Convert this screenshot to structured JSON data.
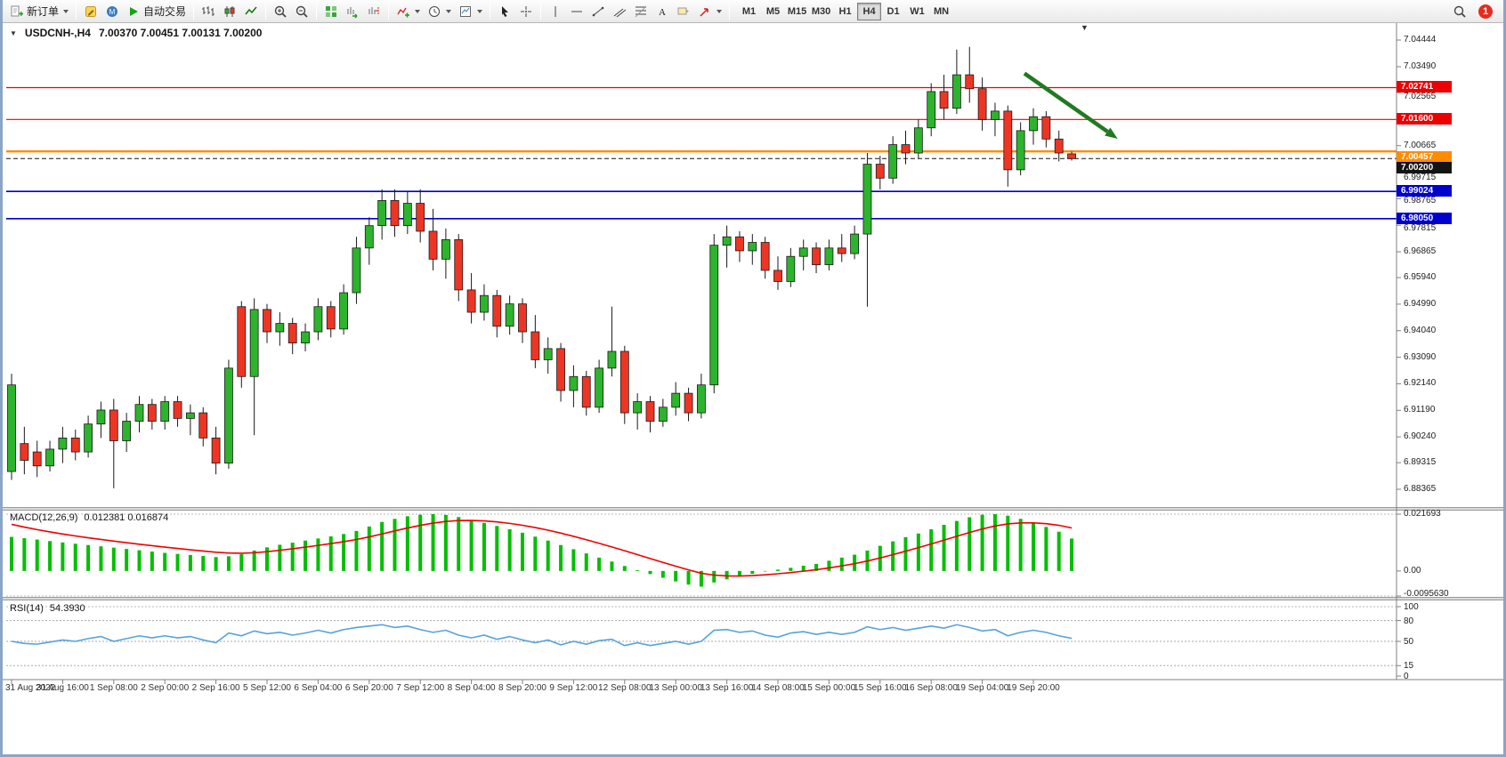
{
  "window": {
    "toolbar": {
      "new_order": "新订单",
      "autotrading": "自动交易",
      "timeframes": [
        "M1",
        "M5",
        "M15",
        "M30",
        "H1",
        "H4",
        "D1",
        "W1",
        "MN"
      ],
      "active_timeframe": "H4",
      "notification_count": "1"
    }
  },
  "chart": {
    "symbol_title": "USDCNH-,H4",
    "ohlc_text": "7.00370 7.00451 7.00131 7.00200"
  },
  "indicators": {
    "macd": {
      "name": "MACD(12,26,9)",
      "values": "0.012381 0.016874",
      "axis": [
        "0.021693",
        "0.00",
        "-0.0095630"
      ]
    },
    "rsi": {
      "name": "RSI(14)",
      "value": "54.3930",
      "axis": [
        "100",
        "80",
        "50",
        "15",
        "0"
      ],
      "levels": [
        80,
        50,
        15
      ]
    }
  },
  "chart_data": {
    "type": "candlestick",
    "symbol": "USDCNH-",
    "timeframe": "H4",
    "ylim": [
      6.88365,
      7.04444
    ],
    "price_ticks": [
      "7.04444",
      "7.03490",
      "7.02565",
      "7.00665",
      "6.99715",
      "6.98765",
      "6.97815",
      "6.96865",
      "6.95940",
      "6.94990",
      "6.94040",
      "6.93090",
      "6.92140",
      "6.91190",
      "6.90240",
      "6.89315",
      "6.88365"
    ],
    "time_labels": [
      "31 Aug 2022",
      "31 Aug 16:00",
      "1 Sep 08:00",
      "2 Sep 00:00",
      "2 Sep 16:00",
      "5 Sep 12:00",
      "6 Sep 04:00",
      "6 Sep 20:00",
      "7 Sep 12:00",
      "8 Sep 04:00",
      "8 Sep 20:00",
      "9 Sep 12:00",
      "12 Sep 08:00",
      "13 Sep 00:00",
      "13 Sep 16:00",
      "14 Sep 08:00",
      "15 Sep 00:00",
      "15 Sep 16:00",
      "16 Sep 08:00",
      "19 Sep 04:00",
      "19 Sep 20:00"
    ],
    "hlines": [
      {
        "value": 7.02741,
        "label": "7.02741",
        "color": "#ee0000",
        "width": 1.2,
        "dash": false
      },
      {
        "value": 7.016,
        "label": "7.01600",
        "color": "#ee0000",
        "width": 1.2,
        "dash": false
      },
      {
        "value": 7.00457,
        "label": "7.00457",
        "color": "#ff8c00",
        "width": 2.4,
        "dash": false
      },
      {
        "value": 7.002,
        "label": "7.00200",
        "color": "#141414",
        "width": 1.0,
        "dash": true
      },
      {
        "value": 6.99024,
        "label": "6.99024",
        "color": "#0000cc",
        "width": 1.6,
        "dash": false
      },
      {
        "value": 6.9805,
        "label": "6.98050",
        "color": "#0000cc",
        "width": 1.6,
        "dash": false
      }
    ],
    "colors": {
      "bull": "#2cb42c",
      "bear": "#ee3524",
      "wick": "#1a1a1a",
      "macd_hist": "#00bf00",
      "macd_signal": "#f00000",
      "rsi_line": "#55a3da",
      "arrow": "#217a21"
    },
    "candles": [
      [
        6.89,
        6.925,
        6.887,
        6.921
      ],
      [
        6.9,
        6.906,
        6.889,
        6.894
      ],
      [
        6.897,
        6.901,
        6.888,
        6.892
      ],
      [
        6.892,
        6.901,
        6.89,
        6.898
      ],
      [
        6.898,
        6.906,
        6.893,
        6.902
      ],
      [
        6.902,
        6.905,
        6.894,
        6.897
      ],
      [
        6.897,
        6.91,
        6.895,
        6.907
      ],
      [
        6.907,
        6.915,
        6.902,
        6.912
      ],
      [
        6.912,
        6.916,
        6.884,
        6.901
      ],
      [
        6.901,
        6.911,
        6.897,
        6.908
      ],
      [
        6.908,
        6.917,
        6.904,
        6.914
      ],
      [
        6.914,
        6.916,
        6.905,
        6.908
      ],
      [
        6.908,
        6.917,
        6.905,
        6.915
      ],
      [
        6.915,
        6.917,
        6.906,
        6.909
      ],
      [
        6.909,
        6.914,
        6.903,
        6.911
      ],
      [
        6.911,
        6.913,
        6.899,
        6.902
      ],
      [
        6.902,
        6.906,
        6.889,
        6.893
      ],
      [
        6.893,
        6.93,
        6.891,
        6.927
      ],
      [
        6.949,
        6.951,
        6.92,
        6.924
      ],
      [
        6.924,
        6.952,
        6.903,
        6.948
      ],
      [
        6.948,
        6.95,
        6.936,
        6.94
      ],
      [
        6.94,
        6.947,
        6.935,
        6.943
      ],
      [
        6.943,
        6.945,
        6.932,
        6.936
      ],
      [
        6.936,
        6.943,
        6.933,
        6.94
      ],
      [
        6.94,
        6.952,
        6.937,
        6.949
      ],
      [
        6.949,
        6.951,
        6.938,
        6.941
      ],
      [
        6.941,
        6.957,
        6.939,
        6.954
      ],
      [
        6.954,
        6.974,
        6.95,
        6.97
      ],
      [
        6.97,
        6.981,
        6.964,
        6.978
      ],
      [
        6.978,
        6.991,
        6.973,
        6.987
      ],
      [
        6.987,
        6.991,
        6.974,
        6.978
      ],
      [
        6.978,
        6.99,
        6.975,
        6.986
      ],
      [
        6.986,
        6.991,
        6.972,
        6.976
      ],
      [
        6.976,
        6.984,
        6.962,
        6.966
      ],
      [
        6.966,
        6.977,
        6.959,
        6.973
      ],
      [
        6.973,
        6.975,
        6.951,
        6.955
      ],
      [
        6.955,
        6.961,
        6.943,
        6.947
      ],
      [
        6.947,
        6.957,
        6.944,
        6.953
      ],
      [
        6.953,
        6.955,
        6.938,
        6.942
      ],
      [
        6.942,
        6.953,
        6.939,
        6.95
      ],
      [
        6.95,
        6.952,
        6.936,
        6.94
      ],
      [
        6.94,
        6.946,
        6.927,
        6.93
      ],
      [
        6.93,
        6.938,
        6.925,
        6.934
      ],
      [
        6.934,
        6.936,
        6.915,
        6.919
      ],
      [
        6.919,
        6.928,
        6.913,
        6.924
      ],
      [
        6.924,
        6.926,
        6.91,
        6.913
      ],
      [
        6.913,
        6.93,
        6.911,
        6.927
      ],
      [
        6.927,
        6.949,
        6.924,
        6.933
      ],
      [
        6.933,
        6.935,
        6.907,
        6.911
      ],
      [
        6.911,
        6.918,
        6.905,
        6.915
      ],
      [
        6.915,
        6.917,
        6.904,
        6.908
      ],
      [
        6.908,
        6.916,
        6.906,
        6.913
      ],
      [
        6.913,
        6.922,
        6.91,
        6.918
      ],
      [
        6.918,
        6.92,
        6.908,
        6.911
      ],
      [
        6.911,
        6.925,
        6.909,
        6.921
      ],
      [
        6.921,
        6.975,
        6.918,
        6.971
      ],
      [
        6.971,
        6.978,
        6.963,
        6.974
      ],
      [
        6.974,
        6.976,
        6.965,
        6.969
      ],
      [
        6.969,
        6.975,
        6.964,
        6.972
      ],
      [
        6.972,
        6.974,
        6.959,
        6.962
      ],
      [
        6.962,
        6.967,
        6.955,
        6.958
      ],
      [
        6.958,
        6.97,
        6.956,
        6.967
      ],
      [
        6.967,
        6.973,
        6.962,
        6.97
      ],
      [
        6.97,
        6.972,
        6.961,
        6.964
      ],
      [
        6.964,
        6.973,
        6.962,
        6.97
      ],
      [
        6.97,
        6.975,
        6.965,
        6.968
      ],
      [
        6.968,
        6.978,
        6.966,
        6.975
      ],
      [
        6.975,
        7.004,
        6.949,
        7.0
      ],
      [
        7.0,
        7.003,
        6.991,
        6.995
      ],
      [
        6.995,
        7.01,
        6.993,
        7.007
      ],
      [
        7.007,
        7.012,
        7.0,
        7.004
      ],
      [
        7.004,
        7.016,
        7.002,
        7.013
      ],
      [
        7.013,
        7.029,
        7.01,
        7.026
      ],
      [
        7.026,
        7.032,
        7.016,
        7.02
      ],
      [
        7.02,
        7.041,
        7.018,
        7.032
      ],
      [
        7.032,
        7.042,
        7.022,
        7.027
      ],
      [
        7.027,
        7.031,
        7.012,
        7.016
      ],
      [
        7.016,
        7.022,
        7.01,
        7.019
      ],
      [
        7.019,
        7.021,
        6.992,
        6.998
      ],
      [
        6.998,
        7.015,
        6.996,
        7.012
      ],
      [
        7.012,
        7.02,
        7.007,
        7.017
      ],
      [
        7.017,
        7.019,
        7.006,
        7.009
      ],
      [
        7.009,
        7.012,
        7.001,
        7.004
      ],
      [
        7.0037,
        7.00451,
        7.00131,
        7.002
      ]
    ],
    "macd": {
      "range": [
        -0.009563,
        0.021693
      ],
      "histogram": [
        0.013,
        0.0125,
        0.012,
        0.0114,
        0.0109,
        0.0104,
        0.0099,
        0.0094,
        0.0089,
        0.0084,
        0.0079,
        0.0074,
        0.0069,
        0.0065,
        0.0061,
        0.0057,
        0.0053,
        0.0056,
        0.0064,
        0.0078,
        0.009,
        0.01,
        0.0108,
        0.0116,
        0.0124,
        0.0132,
        0.0141,
        0.0153,
        0.017,
        0.0187,
        0.0199,
        0.0209,
        0.0215,
        0.0217,
        0.0214,
        0.0206,
        0.0195,
        0.0184,
        0.0172,
        0.0159,
        0.0146,
        0.0131,
        0.0116,
        0.0099,
        0.0083,
        0.0067,
        0.0051,
        0.0036,
        0.0019,
        0.0003,
        -0.0012,
        -0.0026,
        -0.004,
        -0.0052,
        -0.006,
        -0.0044,
        -0.0032,
        -0.0021,
        -0.0011,
        -0.0002,
        0.0005,
        0.0012,
        0.002,
        0.0027,
        0.0039,
        0.0051,
        0.0062,
        0.0078,
        0.0096,
        0.0113,
        0.0129,
        0.0143,
        0.0159,
        0.0176,
        0.0191,
        0.0205,
        0.0215,
        0.0217,
        0.0211,
        0.0199,
        0.0184,
        0.0168,
        0.015,
        0.012381
      ]
    },
    "rsi": {
      "range": [
        0,
        100
      ],
      "values": [
        50,
        47,
        46,
        49,
        52,
        50,
        54,
        57,
        50,
        54,
        58,
        55,
        58,
        55,
        57,
        52,
        48,
        62,
        58,
        65,
        61,
        63,
        59,
        62,
        66,
        62,
        67,
        70,
        72,
        74,
        70,
        72,
        67,
        63,
        66,
        59,
        55,
        59,
        53,
        57,
        52,
        48,
        52,
        45,
        50,
        46,
        51,
        53,
        44,
        48,
        44,
        47,
        50,
        46,
        50,
        66,
        67,
        63,
        65,
        59,
        56,
        62,
        64,
        60,
        63,
        60,
        63,
        71,
        67,
        70,
        66,
        69,
        72,
        69,
        74,
        70,
        65,
        67,
        58,
        63,
        66,
        63,
        58,
        54.39
      ]
    },
    "annotations": [
      {
        "type": "arrow",
        "t1": 79.3,
        "p1": 7.0325,
        "t2": 86.6,
        "p2": 7.0091,
        "color": "#217a21"
      }
    ]
  }
}
